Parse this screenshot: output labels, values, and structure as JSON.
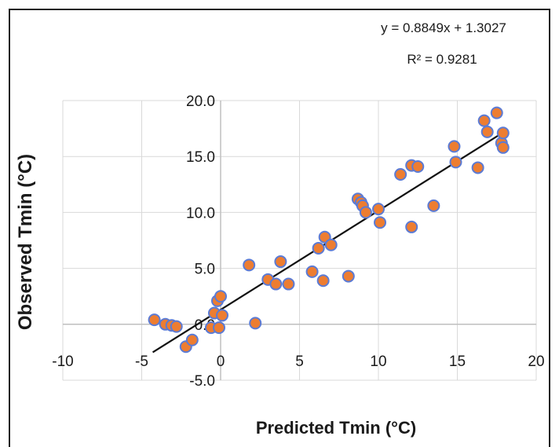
{
  "chart_data": {
    "type": "scatter",
    "xlabel": "Predicted Tmin (°C)",
    "ylabel": "Observed Tmin (°C)",
    "xlim": [
      -10,
      20
    ],
    "ylim": [
      -5,
      20
    ],
    "x_ticks": [
      "-10",
      "-5",
      "0",
      "5",
      "10",
      "15",
      "20"
    ],
    "y_ticks": [
      "-5.0",
      "0.0",
      "5.0",
      "10.0",
      "15.0",
      "20.0"
    ],
    "grid": true,
    "trendline": {
      "slope": 0.8849,
      "intercept": 1.3027,
      "x_range": [
        -4.3,
        17.6
      ],
      "equation": "y = 0.8849x + 1.3027",
      "r2": "R² = 0.9281"
    },
    "marker_fill": "#ed7d31",
    "marker_edge": "#5b7bd5",
    "points": [
      [
        -4.2,
        0.4
      ],
      [
        -3.5,
        0.0
      ],
      [
        -3.1,
        -0.1
      ],
      [
        -2.8,
        -0.2
      ],
      [
        -2.2,
        -2.0
      ],
      [
        -1.8,
        -1.4
      ],
      [
        -0.6,
        -0.3
      ],
      [
        -0.4,
        1.0
      ],
      [
        -0.2,
        2.1
      ],
      [
        -0.1,
        -0.3
      ],
      [
        0.0,
        2.5
      ],
      [
        0.1,
        0.8
      ],
      [
        1.8,
        5.3
      ],
      [
        2.2,
        0.1
      ],
      [
        3.0,
        4.0
      ],
      [
        3.5,
        3.6
      ],
      [
        3.8,
        5.6
      ],
      [
        4.3,
        3.6
      ],
      [
        5.8,
        4.7
      ],
      [
        6.2,
        6.8
      ],
      [
        6.5,
        3.9
      ],
      [
        6.6,
        7.8
      ],
      [
        7.0,
        7.1
      ],
      [
        8.1,
        4.3
      ],
      [
        8.7,
        11.2
      ],
      [
        8.9,
        10.9
      ],
      [
        9.0,
        10.6
      ],
      [
        9.2,
        10.0
      ],
      [
        10.0,
        10.3
      ],
      [
        10.1,
        9.1
      ],
      [
        11.4,
        13.4
      ],
      [
        12.1,
        8.7
      ],
      [
        12.1,
        14.2
      ],
      [
        12.5,
        14.1
      ],
      [
        13.5,
        10.6
      ],
      [
        14.8,
        15.9
      ],
      [
        14.9,
        14.5
      ],
      [
        16.3,
        14.0
      ],
      [
        16.7,
        18.2
      ],
      [
        16.9,
        17.2
      ],
      [
        17.5,
        18.9
      ],
      [
        17.8,
        16.2
      ],
      [
        17.9,
        17.1
      ],
      [
        17.9,
        15.8
      ]
    ]
  }
}
